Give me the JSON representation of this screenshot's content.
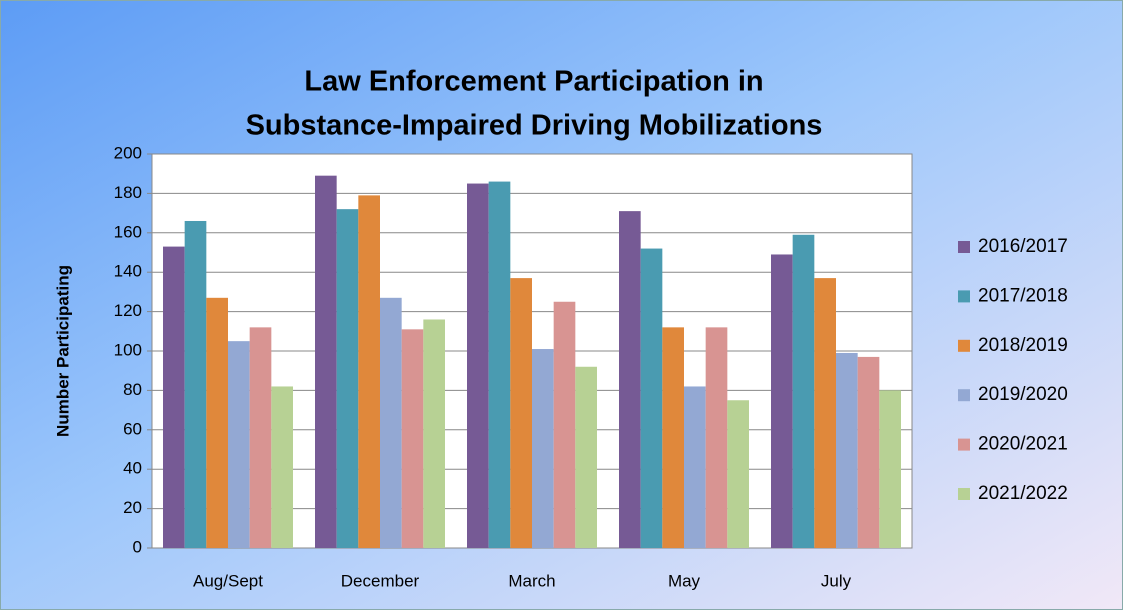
{
  "chart_data": {
    "type": "bar",
    "title": [
      "Law Enforcement Participation in",
      "Substance-Impaired Driving Mobilizations"
    ],
    "y_label": "Number Participating",
    "categories": [
      "Aug/Sept",
      "December",
      "March",
      "May",
      "July"
    ],
    "series": [
      {
        "name": "2016/2017",
        "color": "#765a95",
        "values": [
          153,
          189,
          185,
          171,
          149
        ]
      },
      {
        "name": "2017/2018",
        "color": "#4a9bb1",
        "values": [
          166,
          172,
          186,
          152,
          159
        ]
      },
      {
        "name": "2018/2019",
        "color": "#e0883b",
        "values": [
          127,
          179,
          137,
          112,
          137
        ]
      },
      {
        "name": "2019/2020",
        "color": "#93a8d3",
        "values": [
          105,
          127,
          101,
          82,
          99
        ]
      },
      {
        "name": "2020/2021",
        "color": "#d89492",
        "values": [
          112,
          111,
          125,
          112,
          97
        ]
      },
      {
        "name": "2021/2022",
        "color": "#b7d194",
        "values": [
          82,
          116,
          92,
          75,
          80
        ]
      }
    ],
    "ylim": [
      0,
      200
    ],
    "yticks": [
      0,
      20,
      40,
      60,
      80,
      100,
      120,
      140,
      160,
      180,
      200
    ],
    "grid": true,
    "legend": "right"
  }
}
